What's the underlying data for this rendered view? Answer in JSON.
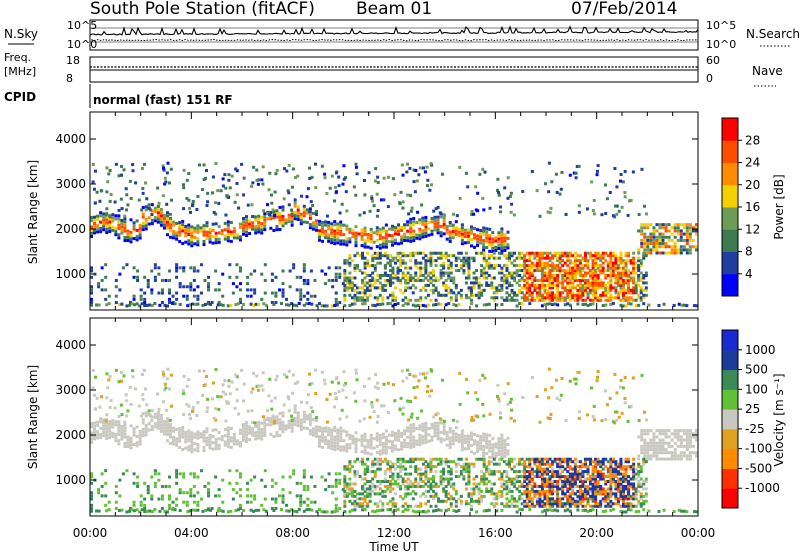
{
  "header": {
    "station": "South Pole Station (fitACF)",
    "beam": "Beam 01",
    "date": "07/Feb/2014"
  },
  "status_panel": {
    "nsky_label": "N.Sky",
    "nsearch_label": "N.Search",
    "noise_ticks": [
      "10^5",
      "10^0"
    ],
    "freq_label_line1": "Freq.",
    "freq_label_line2": "[MHz]",
    "freq_ticks": [
      "18",
      "8"
    ],
    "nave_label": "Nave",
    "nave_ticks": [
      "60",
      "0"
    ],
    "cpid_label": "CPID",
    "cpid_value": "normal (fast) 151 RF"
  },
  "colors": {
    "scale": [
      "#0000ff",
      "#1f3ea0",
      "#3d7a52",
      "#6e9b57",
      "#f5d000",
      "#ff8c00",
      "#ff4d00",
      "#ff0000"
    ],
    "velocity_scale": [
      "#ff0000",
      "#ff3000",
      "#ff8c00",
      "#e0a020",
      "#c8c8c0",
      "#62c038",
      "#3a8a58",
      "#1c3c9c",
      "#1a2ad0"
    ],
    "ground_scatter": "#c8c8c0"
  },
  "chart_data": [
    {
      "type": "heatmap",
      "panel": "power",
      "xlabel": "",
      "ylabel": "Slant Range [km]",
      "x_ticks": [
        "00:00",
        "04:00",
        "08:00",
        "12:00",
        "16:00",
        "20:00",
        "00:00"
      ],
      "y_ticks": [
        "1000",
        "2000",
        "3000",
        "4000"
      ],
      "ylim": [
        200,
        4600
      ],
      "colorbar_label": "Power [dB]",
      "colorbar_ticks": [
        "4",
        "8",
        "12",
        "16",
        "20",
        "24",
        "28"
      ],
      "clim": [
        0,
        32
      ]
    },
    {
      "type": "heatmap",
      "panel": "velocity",
      "xlabel": "Time UT",
      "ylabel": "Slant Range [km]",
      "x_ticks": [
        "00:00",
        "04:00",
        "08:00",
        "12:00",
        "16:00",
        "20:00",
        "00:00"
      ],
      "y_ticks": [
        "1000",
        "2000",
        "3000",
        "4000"
      ],
      "ylim": [
        200,
        4600
      ],
      "colorbar_label": "Velocity [m s⁻¹]",
      "colorbar_ticks": [
        "1000",
        "500",
        "100",
        "25",
        "-25",
        "-100",
        "-500",
        "-1000"
      ]
    }
  ]
}
